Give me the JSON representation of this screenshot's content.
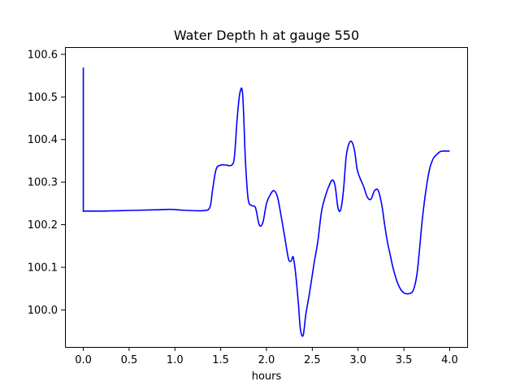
{
  "chart_data": {
    "type": "line",
    "title": "Water Depth h at gauge 550",
    "xlabel": "hours",
    "ylabel": "",
    "xlim": [
      -0.2,
      4.2
    ],
    "ylim": [
      99.913,
      100.617
    ],
    "grid": false,
    "x_ticks": [
      0.0,
      0.5,
      1.0,
      1.5,
      2.0,
      2.5,
      3.0,
      3.5,
      4.0
    ],
    "x_tick_labels": [
      "0.0",
      "0.5",
      "1.0",
      "1.5",
      "2.0",
      "2.5",
      "3.0",
      "3.5",
      "4.0"
    ],
    "y_ticks": [
      100.0,
      100.1,
      100.2,
      100.3,
      100.4,
      100.5,
      100.6
    ],
    "y_tick_labels": [
      "100.0",
      "100.1",
      "100.2",
      "100.3",
      "100.4",
      "100.5",
      "100.6"
    ],
    "series": [
      {
        "color": "#0000ff",
        "x": [
          0.0,
          0.0,
          0.0,
          0.02,
          0.2,
          0.4,
          0.6,
          0.8,
          0.95,
          1.1,
          1.3,
          1.38,
          1.41,
          1.45,
          1.5,
          1.56,
          1.62,
          1.65,
          1.68,
          1.71,
          1.74,
          1.77,
          1.8,
          1.84,
          1.88,
          1.92,
          1.96,
          2.0,
          2.04,
          2.08,
          2.12,
          2.16,
          2.2,
          2.24,
          2.27,
          2.29,
          2.31,
          2.33,
          2.35,
          2.37,
          2.4,
          2.43,
          2.47,
          2.52,
          2.56,
          2.6,
          2.64,
          2.68,
          2.72,
          2.75,
          2.78,
          2.81,
          2.84,
          2.87,
          2.9,
          2.93,
          2.96,
          2.99,
          3.02,
          3.06,
          3.1,
          3.14,
          3.18,
          3.22,
          3.26,
          3.29,
          3.32,
          3.35,
          3.38,
          3.42,
          3.46,
          3.5,
          3.55,
          3.6,
          3.64,
          3.67,
          3.7,
          3.74,
          3.78,
          3.82,
          3.86,
          3.9,
          3.95,
          4.0
        ],
        "y": [
          100.23,
          100.568,
          100.232,
          100.232,
          100.232,
          100.233,
          100.234,
          100.235,
          100.236,
          100.234,
          100.233,
          100.24,
          100.28,
          100.33,
          100.34,
          100.34,
          100.34,
          100.36,
          100.45,
          100.51,
          100.505,
          100.35,
          100.26,
          100.245,
          100.24,
          100.2,
          100.205,
          100.25,
          100.27,
          100.28,
          100.265,
          100.22,
          100.17,
          100.12,
          100.115,
          100.125,
          100.1,
          100.06,
          100.01,
          99.955,
          99.94,
          99.99,
          100.04,
          100.11,
          100.16,
          100.23,
          100.265,
          100.29,
          100.305,
          100.29,
          100.24,
          100.235,
          100.28,
          100.36,
          100.39,
          100.395,
          100.375,
          100.33,
          100.31,
          100.29,
          100.265,
          100.26,
          100.28,
          100.28,
          100.245,
          100.2,
          100.16,
          100.13,
          100.1,
          100.07,
          100.05,
          100.04,
          100.038,
          100.045,
          100.08,
          100.14,
          100.21,
          100.28,
          100.33,
          100.355,
          100.365,
          100.372,
          100.373,
          100.373
        ]
      }
    ]
  }
}
